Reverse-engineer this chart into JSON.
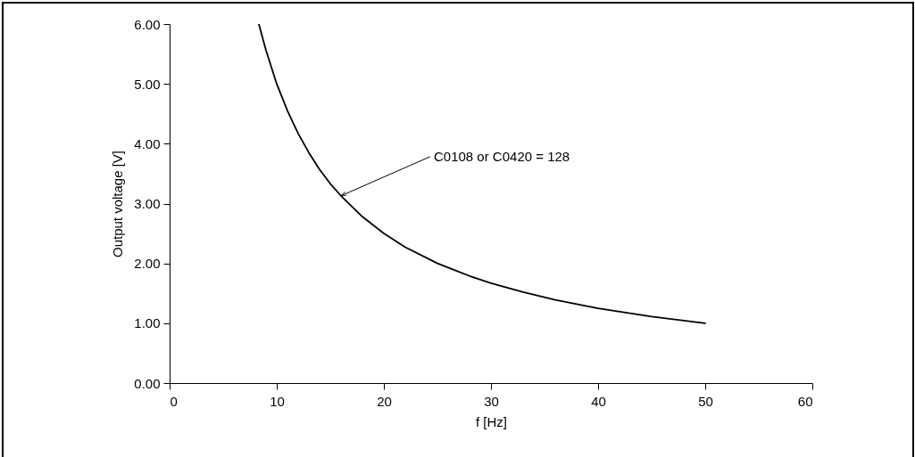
{
  "chart_data": {
    "type": "line",
    "xlabel": "f [Hz]",
    "ylabel": "Output voltage [V]",
    "x": [
      8.33,
      9,
      10,
      11,
      12,
      13,
      14,
      15,
      16,
      18,
      20,
      22,
      25,
      28,
      30,
      33,
      36,
      40,
      45,
      50
    ],
    "series": [
      {
        "color": "#000000",
        "values": [
          6.0,
          5.56,
          5.0,
          4.55,
          4.17,
          3.85,
          3.57,
          3.33,
          3.13,
          2.78,
          2.5,
          2.27,
          2.0,
          1.79,
          1.67,
          1.52,
          1.39,
          1.25,
          1.11,
          1.0
        ]
      }
    ],
    "xlim": [
      0,
      60
    ],
    "xticks": [
      0,
      10,
      20,
      30,
      40,
      50,
      60
    ],
    "ylim": [
      0,
      6
    ],
    "yticks": [
      {
        "value": 0,
        "label": "0.00"
      },
      {
        "value": 1,
        "label": "1.00"
      },
      {
        "value": 2,
        "label": "2.00"
      },
      {
        "value": 3,
        "label": "3.00"
      },
      {
        "value": 4,
        "label": "4.00"
      },
      {
        "value": 5,
        "label": "5.00"
      },
      {
        "value": 6,
        "label": "6.00"
      }
    ],
    "annotations": [
      {
        "text": "C0108 or C0420 = 128",
        "x": 16,
        "y": 3.13
      }
    ],
    "grid": false,
    "marker": "none",
    "line_style": "solid"
  }
}
